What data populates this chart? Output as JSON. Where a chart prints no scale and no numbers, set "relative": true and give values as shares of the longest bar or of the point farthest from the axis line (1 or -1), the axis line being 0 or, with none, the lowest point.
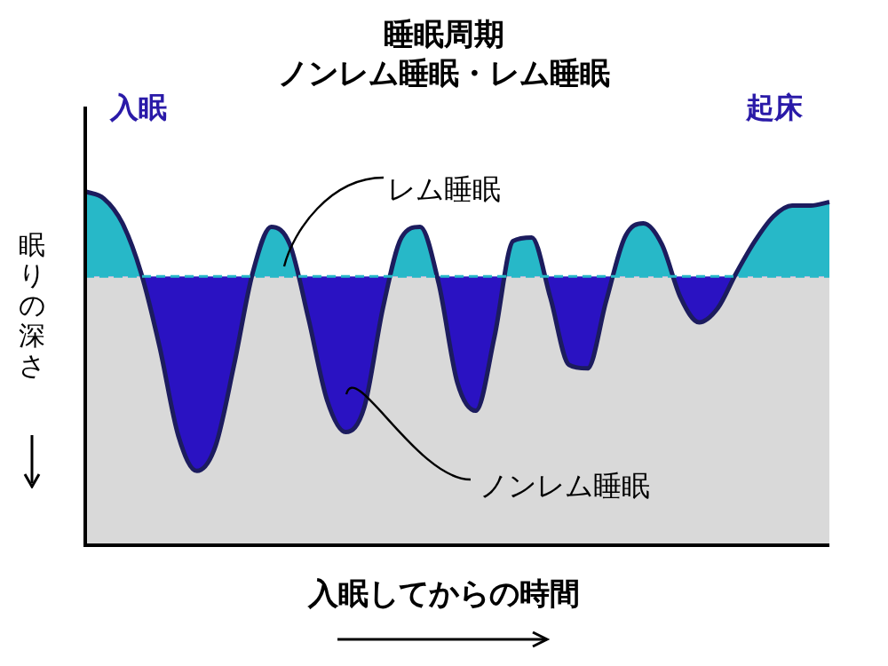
{
  "chart_data": {
    "type": "line",
    "relative": true,
    "title": "睡眠周期",
    "subtitle": "ノンレム睡眠・レム睡眠",
    "ylabel": "眠りの深さ",
    "xlabel": "入眠してからの時間",
    "annotations": [
      "入眠",
      "起床",
      "レム睡眠",
      "ノンレム睡眠"
    ],
    "categories": [
      null,
      null,
      null,
      null,
      null,
      null,
      null,
      null,
      null,
      null,
      null,
      null,
      null,
      null,
      null,
      null,
      null,
      null,
      null,
      null,
      null,
      null,
      null,
      null,
      null,
      null,
      null,
      null,
      null,
      null,
      null,
      null,
      null,
      null,
      null,
      null,
      null,
      null,
      null,
      null,
      null
    ],
    "series": [
      {
        "color": "#1c1c5e",
        "values": [
          1.0,
          0.98,
          0.91,
          0.77,
          0.56,
          0.31,
          0.21,
          0.28,
          0.51,
          0.77,
          0.9,
          0.85,
          0.64,
          0.41,
          0.32,
          0.39,
          0.67,
          0.87,
          0.9,
          0.74,
          0.46,
          0.38,
          0.59,
          0.86,
          0.87,
          0.7,
          0.51,
          0.5,
          0.69,
          0.87,
          0.91,
          0.85,
          0.7,
          0.63,
          0.67,
          0.77,
          0.86,
          0.93,
          0.96,
          0.96,
          0.97
        ]
      }
    ],
    "ref_lines": [
      {
        "axis": "y",
        "value": 0.76,
        "color": "#27b8c8",
        "line_style": "dashed"
      }
    ],
    "bands": [
      {
        "axis": "y",
        "from": 0,
        "to": 0.76,
        "color": "#d9d9d9"
      }
    ],
    "marker": "none",
    "legend": false
  }
}
